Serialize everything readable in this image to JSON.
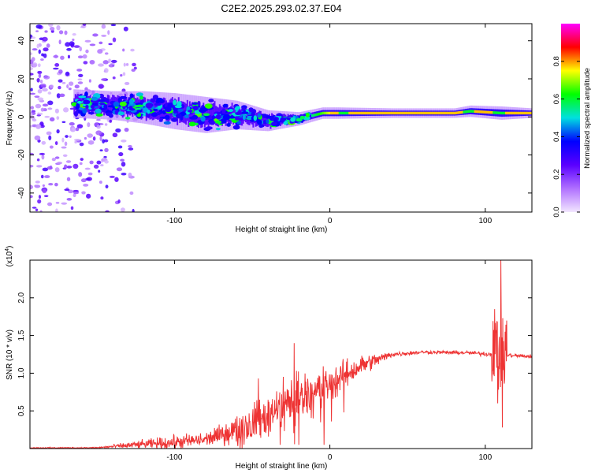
{
  "title": "C2E2.2025.293.02.37.E04",
  "chart_data": [
    {
      "type": "heatmap",
      "name": "spectrogram",
      "xlabel": "Height of straight line (km)",
      "ylabel": "Frequency (Hz)",
      "xlim": [
        -193,
        130
      ],
      "ylim": [
        -50,
        49
      ],
      "x_ticks": [
        -100,
        0,
        100
      ],
      "x_tick_labels": [
        "-100",
        "0",
        "100"
      ],
      "y_ticks": [
        -40,
        -20,
        0,
        20,
        40
      ],
      "y_tick_labels": [
        "-40",
        "-20",
        "0",
        "20",
        "40"
      ],
      "colorbar": {
        "label": "Normalized spectral amplitude",
        "range": [
          0,
          1
        ],
        "ticks": [
          0.0,
          0.2,
          0.4,
          0.6,
          0.8
        ],
        "tick_labels": [
          "0.0",
          "0.2",
          "0.4",
          "0.6",
          "0.8"
        ],
        "colors": [
          "#f2e6ff",
          "#b070ff",
          "#5a00ff",
          "#0000ff",
          "#00e0e0",
          "#00ff00",
          "#ffff00",
          "#ff0000",
          "#ff00ff"
        ]
      },
      "noise_region_x": [
        -193,
        -125
      ],
      "ridge": [
        {
          "x": -165,
          "y": 7,
          "spread": 6
        },
        {
          "x": -140,
          "y": 6,
          "spread": 6
        },
        {
          "x": -120,
          "y": 5,
          "spread": 7
        },
        {
          "x": -100,
          "y": 3,
          "spread": 8
        },
        {
          "x": -80,
          "y": 1,
          "spread": 8
        },
        {
          "x": -60,
          "y": 1,
          "spread": 6
        },
        {
          "x": -40,
          "y": -2,
          "spread": 4
        },
        {
          "x": -20,
          "y": -1,
          "spread": 2
        },
        {
          "x": -5,
          "y": 2,
          "spread": 1.5
        },
        {
          "x": 5,
          "y": 2,
          "spread": 1.5
        },
        {
          "x": 40,
          "y": 2,
          "spread": 1
        },
        {
          "x": 80,
          "y": 2,
          "spread": 1
        },
        {
          "x": 90,
          "y": 3,
          "spread": 1.5
        },
        {
          "x": 110,
          "y": 2,
          "spread": 2
        },
        {
          "x": 130,
          "y": 2,
          "spread": 1
        }
      ]
    },
    {
      "type": "line",
      "name": "snr",
      "xlabel": "Height of straight line (km)",
      "ylabel": "SNR (10 * v/v)",
      "y_multiplier_label": "(x10",
      "y_multiplier_exp": "4",
      "y_multiplier_close": ")",
      "xlim": [
        -193,
        130
      ],
      "ylim": [
        0,
        2.5
      ],
      "x_ticks": [
        -100,
        0,
        100
      ],
      "x_tick_labels": [
        "-100",
        "0",
        "100"
      ],
      "y_ticks": [
        0.5,
        1.0,
        1.5,
        2.0
      ],
      "y_tick_labels": [
        "0.5",
        "1.0",
        "1.5",
        "2.0"
      ],
      "series_color": "#ee3333",
      "envelope": [
        {
          "x": -193,
          "mean": 0.01,
          "noise": 0.005
        },
        {
          "x": -150,
          "mean": 0.01,
          "noise": 0.008
        },
        {
          "x": -125,
          "mean": 0.05,
          "noise": 0.04
        },
        {
          "x": -100,
          "mean": 0.08,
          "noise": 0.08
        },
        {
          "x": -80,
          "mean": 0.12,
          "noise": 0.08
        },
        {
          "x": -60,
          "mean": 0.25,
          "noise": 0.15
        },
        {
          "x": -40,
          "mean": 0.45,
          "noise": 0.25
        },
        {
          "x": -20,
          "mean": 0.7,
          "noise": 0.3
        },
        {
          "x": 0,
          "mean": 0.85,
          "noise": 0.2
        },
        {
          "x": 20,
          "mean": 1.1,
          "noise": 0.12
        },
        {
          "x": 40,
          "mean": 1.25,
          "noise": 0.03
        },
        {
          "x": 60,
          "mean": 1.28,
          "noise": 0.02
        },
        {
          "x": 90,
          "mean": 1.27,
          "noise": 0.02
        },
        {
          "x": 104,
          "mean": 1.25,
          "noise": 0.03
        },
        {
          "x": 130,
          "mean": 1.22,
          "noise": 0.02
        }
      ],
      "features": [
        {
          "x": -72,
          "y": 0.12
        },
        {
          "x": -46,
          "y": 0.93
        },
        {
          "x": -32,
          "y": 0.05
        },
        {
          "x": -23,
          "y": 1.4
        },
        {
          "x": -20,
          "y": 0.05
        },
        {
          "x": 9,
          "y": 0.48
        },
        {
          "x": 106,
          "y": 1.85
        },
        {
          "x": 108,
          "y": 0.6
        },
        {
          "x": 110,
          "y": 2.5
        },
        {
          "x": 111,
          "y": 0.28
        },
        {
          "x": 113,
          "y": 1.3
        }
      ]
    }
  ]
}
